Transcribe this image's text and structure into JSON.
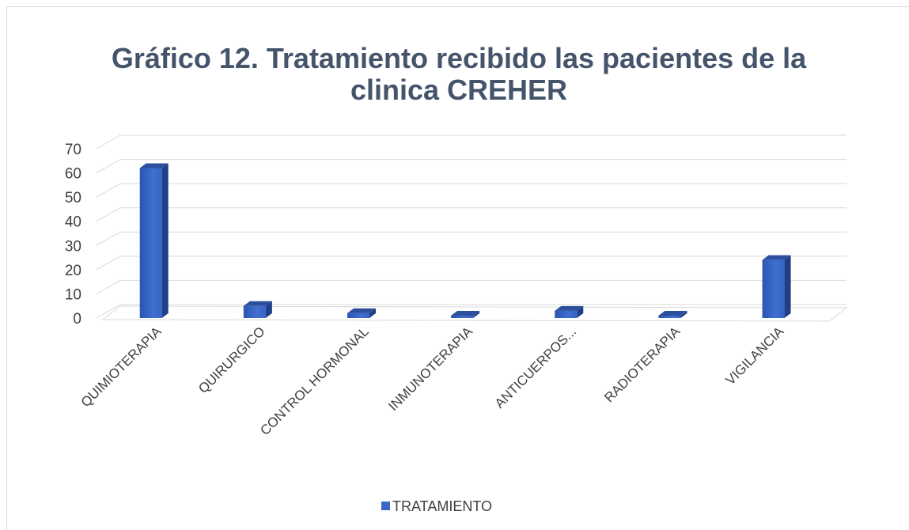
{
  "chart_data": {
    "type": "bar3d",
    "title": "Gráfico 12. Tratamiento recibido las pacientes de la clinica CREHER",
    "title_lines": [
      "Gráfico 12. Tratamiento recibido las pacientes de la",
      "clinica CREHER"
    ],
    "categories": [
      "QUIMIOTERAPIA",
      "QUIRURGICO",
      "CONTROL HORMONAL",
      "INMUNOTERAPIA",
      "ANTICUERPOS...",
      "RADIOTERAPIA",
      "VIGILANCIA"
    ],
    "series": [
      {
        "name": "TRATAMIENTO",
        "color": "#3a67c8",
        "values": [
          62,
          5,
          2,
          1,
          3,
          1,
          24
        ]
      }
    ],
    "ylim": [
      0,
      70
    ],
    "yticks": [
      0,
      10,
      20,
      30,
      40,
      50,
      60,
      70
    ],
    "grid": true,
    "legend": "bottom"
  }
}
